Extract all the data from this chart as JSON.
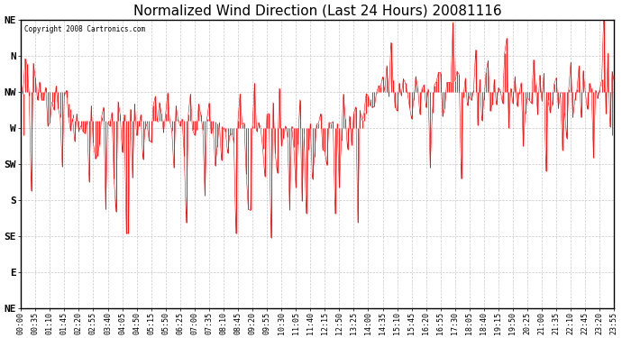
{
  "title": "Normalized Wind Direction (Last 24 Hours) 20081116",
  "copyright_text": "Copyright 2008 Cartronics.com",
  "y_labels": [
    "NE",
    "N",
    "NW",
    "W",
    "SW",
    "S",
    "SE",
    "E",
    "NE"
  ],
  "y_values": [
    8,
    7,
    6,
    5,
    4,
    3,
    2,
    1,
    0
  ],
  "x_tick_labels": [
    "00:00",
    "00:35",
    "01:10",
    "01:45",
    "02:20",
    "02:55",
    "03:40",
    "04:05",
    "04:50",
    "05:15",
    "05:50",
    "06:25",
    "07:00",
    "07:35",
    "08:10",
    "08:45",
    "09:20",
    "09:55",
    "10:30",
    "11:05",
    "11:40",
    "12:15",
    "12:50",
    "13:25",
    "14:00",
    "14:35",
    "15:10",
    "15:45",
    "16:20",
    "16:55",
    "17:30",
    "18:05",
    "18:40",
    "19:15",
    "19:50",
    "20:25",
    "21:00",
    "21:35",
    "22:10",
    "22:45",
    "23:20",
    "23:55"
  ],
  "background_color": "#ffffff",
  "plot_bg_color": "#ffffff",
  "line_color": "#ff0000",
  "grid_color": "#bbbbbb",
  "title_fontsize": 11,
  "tick_fontsize": 6,
  "seed": 42,
  "n_points": 288,
  "figwidth": 6.9,
  "figheight": 3.75,
  "dpi": 100
}
